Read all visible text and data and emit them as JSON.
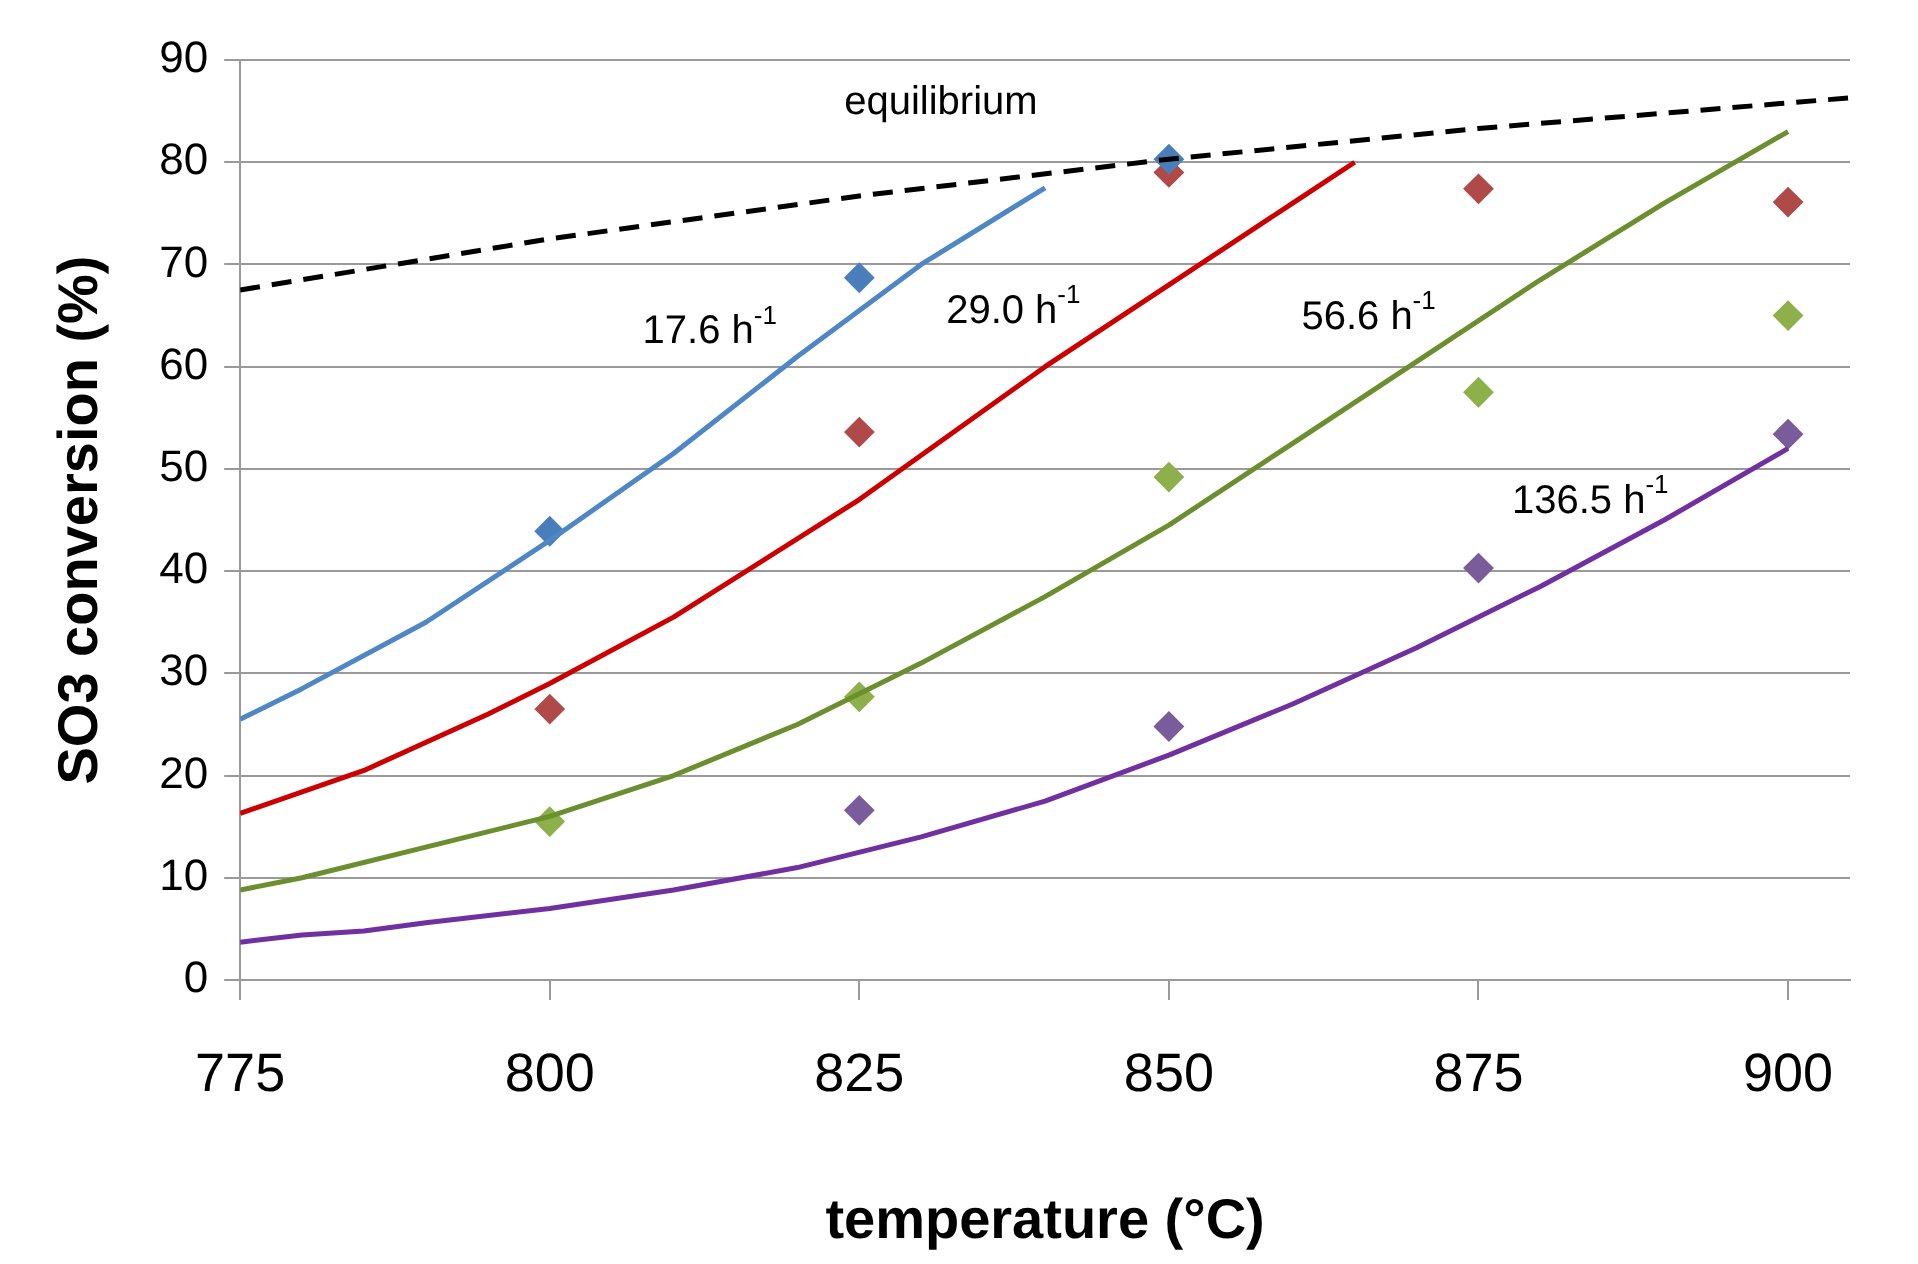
{
  "chart_data": {
    "type": "line",
    "xlabel": "temperature (°C)",
    "ylabel": "SO3 conversion (%)",
    "xlim": [
      775,
      905
    ],
    "xticks": [
      775,
      800,
      825,
      850,
      875,
      900
    ],
    "ylim": [
      0,
      90
    ],
    "yticks": [
      0,
      10,
      20,
      30,
      40,
      50,
      60,
      70,
      80,
      90
    ],
    "grid": "y",
    "series": [
      {
        "name": "equilibrium",
        "color": "#000000",
        "line_style": "dashed",
        "marker": "none",
        "x": [
          775,
          800,
          825,
          850,
          875,
          900,
          905
        ],
        "values": [
          67.5,
          72.5,
          76.7,
          80.3,
          83.3,
          85.8,
          86.3
        ]
      },
      {
        "name": "17.6 h$^{-1}$",
        "color": "#4f86c6",
        "marker": "none",
        "x": [
          775,
          780,
          790,
          800,
          810,
          820,
          830,
          840
        ],
        "values": [
          25.5,
          28.5,
          35,
          43,
          51.5,
          61,
          70,
          77.5
        ]
      },
      {
        "name": "29.0 h$^{-1}$",
        "color": "#cc0000",
        "marker": "none",
        "x": [
          775,
          785,
          795,
          800,
          810,
          825,
          840,
          850,
          860,
          865
        ],
        "values": [
          16.3,
          20.5,
          26,
          29,
          35.5,
          47,
          60,
          68,
          76,
          80
        ]
      },
      {
        "name": "56.6 h$^{-1}$",
        "color": "#6b8e2f",
        "marker": "none",
        "x": [
          775,
          780,
          790,
          800,
          810,
          820,
          830,
          840,
          850,
          860,
          870,
          880,
          890,
          900
        ],
        "values": [
          8.8,
          10,
          13,
          16,
          20,
          25,
          31,
          37.5,
          44.5,
          52.5,
          60.5,
          68.5,
          76,
          83
        ]
      },
      {
        "name": "136.5 h$^{-1}$",
        "color": "#7030a0",
        "marker": "none",
        "x": [
          775,
          780,
          785,
          790,
          800,
          810,
          820,
          830,
          840,
          850,
          860,
          870,
          880,
          890,
          900
        ],
        "values": [
          3.7,
          4.4,
          4.8,
          5.6,
          7,
          8.8,
          11,
          14,
          17.5,
          22,
          27,
          32.5,
          38.5,
          45,
          52
        ]
      },
      {
        "type": "scatter",
        "color": "#4a7ebb",
        "marker": "diamond",
        "x": [
          800,
          825,
          850
        ],
        "values": [
          43.9,
          68.7,
          80.3
        ]
      },
      {
        "type": "scatter",
        "color": "#b04a48",
        "marker": "diamond",
        "x": [
          800,
          825,
          850,
          875,
          900
        ],
        "values": [
          26.5,
          53.6,
          79.0,
          77.4,
          76.1
        ]
      },
      {
        "type": "scatter",
        "color": "#8db04a",
        "marker": "diamond",
        "x": [
          800,
          825,
          850,
          875,
          900
        ],
        "values": [
          15.5,
          27.7,
          49.2,
          57.5,
          65.0
        ]
      },
      {
        "type": "scatter",
        "color": "#7a5c9c",
        "marker": "diamond",
        "x": [
          825,
          850,
          875,
          900
        ],
        "values": [
          16.6,
          24.8,
          40.3,
          53.4
        ]
      }
    ]
  }
}
